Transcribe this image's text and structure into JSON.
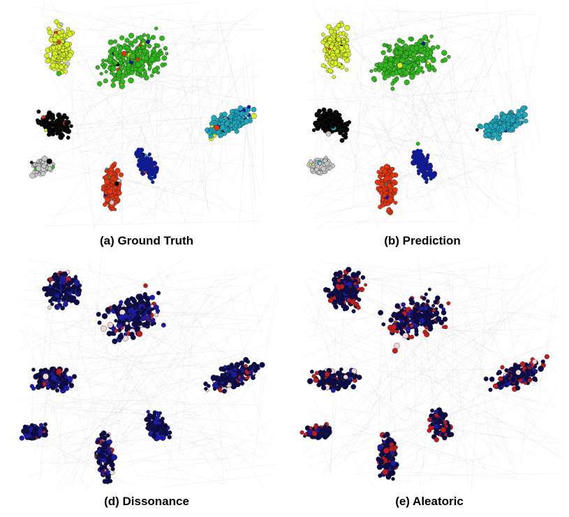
{
  "panels": [
    {
      "id": "a",
      "caption": "(a) Ground Truth",
      "style": "class",
      "colors": [
        "#d8f020",
        "#2fb81a",
        "#1ba9bf",
        "#0d1aa8",
        "#e8340c",
        "#c8c8c8",
        "#000000"
      ]
    },
    {
      "id": "b",
      "caption": "(b) Prediction",
      "style": "class",
      "colors": [
        "#d8f020",
        "#2fb81a",
        "#1ba9bf",
        "#0d1aa8",
        "#e8340c",
        "#c8c8c8",
        "#000000"
      ]
    },
    {
      "id": "d",
      "caption": "(d) Dissonance",
      "style": "uncertainty",
      "colors": [
        "#0a0a4a",
        "#1a1ab0",
        "#c41a1a",
        "#f2d6d6"
      ]
    },
    {
      "id": "e",
      "caption": "(e) Aleatoric",
      "style": "uncertainty",
      "colors": [
        "#0a0a4a",
        "#1a1ab0",
        "#c41a1a",
        "#f2d6d6"
      ]
    }
  ]
}
